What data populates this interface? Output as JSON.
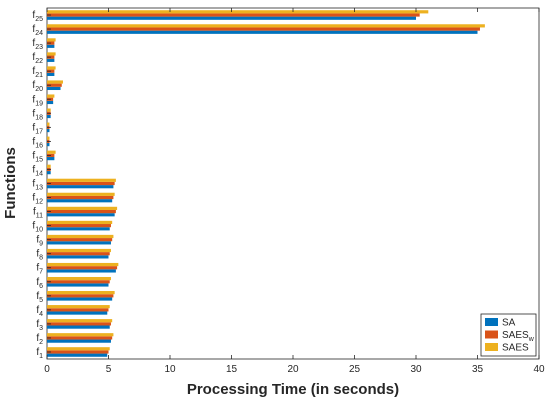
{
  "chart_data": {
    "type": "bar",
    "orientation": "horizontal",
    "categories": [
      "1",
      "2",
      "3",
      "4",
      "5",
      "6",
      "7",
      "8",
      "9",
      "10",
      "11",
      "12",
      "13",
      "14",
      "15",
      "16",
      "17",
      "18",
      "19",
      "20",
      "21",
      "22",
      "23",
      "24",
      "25"
    ],
    "category_prefix": "f",
    "series": [
      {
        "name": "SA",
        "color": "#0072BD",
        "values": [
          4.9,
          5.2,
          5.1,
          4.9,
          5.3,
          5.0,
          5.6,
          5.0,
          5.2,
          5.1,
          5.5,
          5.3,
          5.4,
          0.3,
          0.6,
          0.2,
          0.2,
          0.3,
          0.5,
          1.1,
          0.6,
          0.6,
          0.6,
          35.0,
          30.0
        ]
      },
      {
        "name": "SAES",
        "name_subscript": "w",
        "color": "#D95319",
        "values": [
          5.0,
          5.3,
          5.2,
          5.0,
          5.4,
          5.1,
          5.7,
          5.1,
          5.3,
          5.2,
          5.6,
          5.4,
          5.5,
          0.3,
          0.6,
          0.2,
          0.2,
          0.3,
          0.5,
          1.2,
          0.6,
          0.6,
          0.6,
          35.2,
          30.3
        ]
      },
      {
        "name": "SAES",
        "color": "#EDB120",
        "values": [
          5.1,
          5.4,
          5.3,
          5.1,
          5.5,
          5.2,
          5.8,
          5.2,
          5.4,
          5.3,
          5.7,
          5.5,
          5.6,
          0.3,
          0.7,
          0.2,
          0.2,
          0.3,
          0.6,
          1.3,
          0.7,
          0.7,
          0.7,
          35.6,
          31.0
        ]
      }
    ],
    "xlabel": "Processing Time (in seconds)",
    "ylabel": "Functions",
    "xlim": [
      0,
      40
    ],
    "xticks": [
      0,
      5,
      10,
      15,
      20,
      25,
      30,
      35,
      40
    ],
    "grid": false,
    "legend_placement": "bottom-right"
  }
}
